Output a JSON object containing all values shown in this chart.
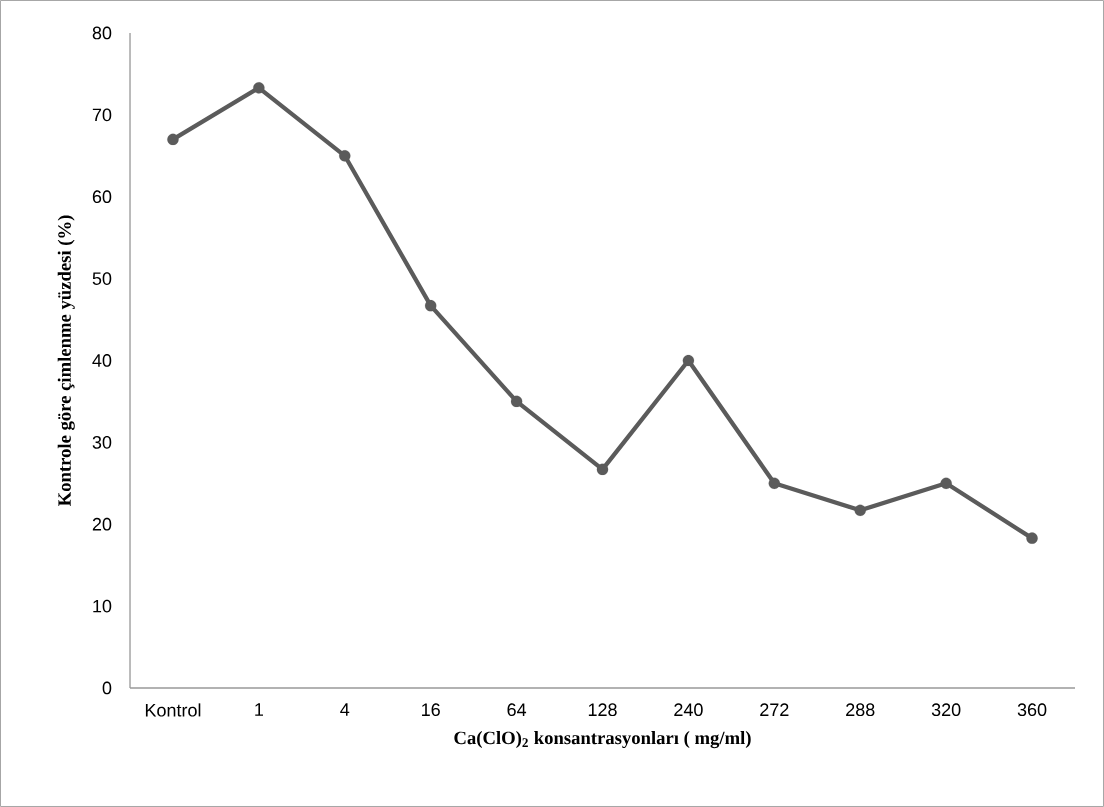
{
  "chart_data": {
    "type": "line",
    "xlabel": "Ca(ClO)$_{2}$ konsantrasyonları ( mg/ml)",
    "ylabel": "Kontrole göre çimlenme yüzdesi (%)",
    "categories": [
      "Kontrol",
      "1",
      "4",
      "16",
      "64",
      "128",
      "240",
      "272",
      "288",
      "320",
      "360"
    ],
    "values": [
      67,
      73.3,
      65,
      46.7,
      35,
      26.7,
      40,
      25,
      21.7,
      25,
      18.3
    ],
    "color": "#5b5b5b",
    "marker": "circle",
    "line_style": "solid",
    "grid": false,
    "ylim": [
      0,
      80
    ],
    "yticks": [
      0,
      10,
      20,
      30,
      40,
      50,
      60,
      70,
      80
    ]
  }
}
